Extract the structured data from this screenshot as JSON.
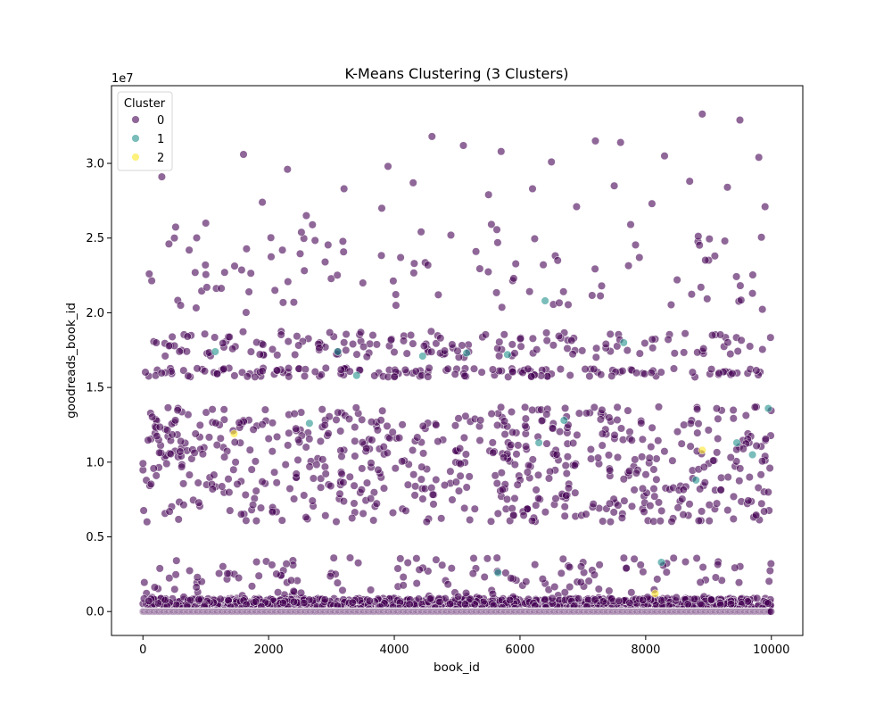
{
  "chart_data": {
    "type": "scatter",
    "title": "K-Means Clustering (3 Clusters)",
    "xlabel": "book_id",
    "ylabel": "goodreads_book_id",
    "y_scale_label": "1e7",
    "xlim": [
      -500,
      10500
    ],
    "ylim": [
      -1600000,
      35200000
    ],
    "x_ticks": [
      0,
      2000,
      4000,
      6000,
      8000,
      10000
    ],
    "x_tick_labels": [
      "0",
      "2000",
      "4000",
      "6000",
      "8000",
      "10000"
    ],
    "y_ticks": [
      0,
      5000000,
      10000000,
      15000000,
      20000000,
      25000000,
      30000000
    ],
    "y_tick_labels": [
      "0.0",
      "0.5",
      "1.0",
      "1.5",
      "2.0",
      "2.5",
      "3.0"
    ],
    "grid": false,
    "legend": {
      "title": "Cluster",
      "placement": "top-left"
    },
    "series": [
      {
        "name": "0",
        "color": "#440154",
        "description_bands": "dense horizontal bands of points across x in [0, 10000]",
        "points": [
          [
            300,
            29100000
          ],
          [
            1600,
            30600000
          ],
          [
            2300,
            29600000
          ],
          [
            3900,
            29800000
          ],
          [
            4600,
            31800000
          ],
          [
            5100,
            31200000
          ],
          [
            5700,
            30800000
          ],
          [
            6500,
            30100000
          ],
          [
            7200,
            31500000
          ],
          [
            7600,
            31400000
          ],
          [
            8300,
            30500000
          ],
          [
            8900,
            33300000
          ],
          [
            9500,
            32900000
          ],
          [
            9800,
            30400000
          ],
          [
            100,
            22600000
          ],
          [
            500,
            25000000
          ],
          [
            1000,
            26000000
          ],
          [
            1900,
            27400000
          ],
          [
            2600,
            26500000
          ],
          [
            3200,
            28300000
          ],
          [
            3800,
            27000000
          ],
          [
            4300,
            28700000
          ],
          [
            4900,
            25200000
          ],
          [
            5500,
            27900000
          ],
          [
            6200,
            28300000
          ],
          [
            6900,
            27100000
          ],
          [
            7500,
            28500000
          ],
          [
            8100,
            27300000
          ],
          [
            8700,
            28800000
          ],
          [
            9300,
            28400000
          ],
          [
            9900,
            27100000
          ],
          [
            600,
            20500000
          ],
          [
            1300,
            22700000
          ],
          [
            2100,
            21500000
          ],
          [
            2900,
            23400000
          ],
          [
            3500,
            22000000
          ],
          [
            4100,
            23700000
          ],
          [
            4700,
            21200000
          ],
          [
            5300,
            24100000
          ],
          [
            5900,
            22300000
          ],
          [
            6600,
            23500000
          ],
          [
            7300,
            21800000
          ],
          [
            7900,
            23700000
          ],
          [
            8500,
            22200000
          ],
          [
            9100,
            23800000
          ],
          [
            9700,
            21300000
          ]
        ]
      },
      {
        "name": "1",
        "color": "#21918c",
        "points": [
          [
            1150,
            17400000
          ],
          [
            2650,
            12600000
          ],
          [
            3100,
            17400000
          ],
          [
            3400,
            15800000
          ],
          [
            4450,
            17100000
          ],
          [
            5150,
            17300000
          ],
          [
            5650,
            2600000
          ],
          [
            5800,
            17200000
          ],
          [
            6300,
            11300000
          ],
          [
            6400,
            20800000
          ],
          [
            6700,
            12800000
          ],
          [
            7650,
            18000000
          ],
          [
            8250,
            3300000
          ],
          [
            8800,
            8800000
          ],
          [
            9450,
            11300000
          ],
          [
            9700,
            10500000
          ],
          [
            9950,
            13600000
          ]
        ]
      },
      {
        "name": "2",
        "color": "#fde725",
        "points": [
          [
            1450,
            11900000
          ],
          [
            8150,
            1200000
          ],
          [
            8900,
            10800000
          ]
        ]
      }
    ]
  }
}
